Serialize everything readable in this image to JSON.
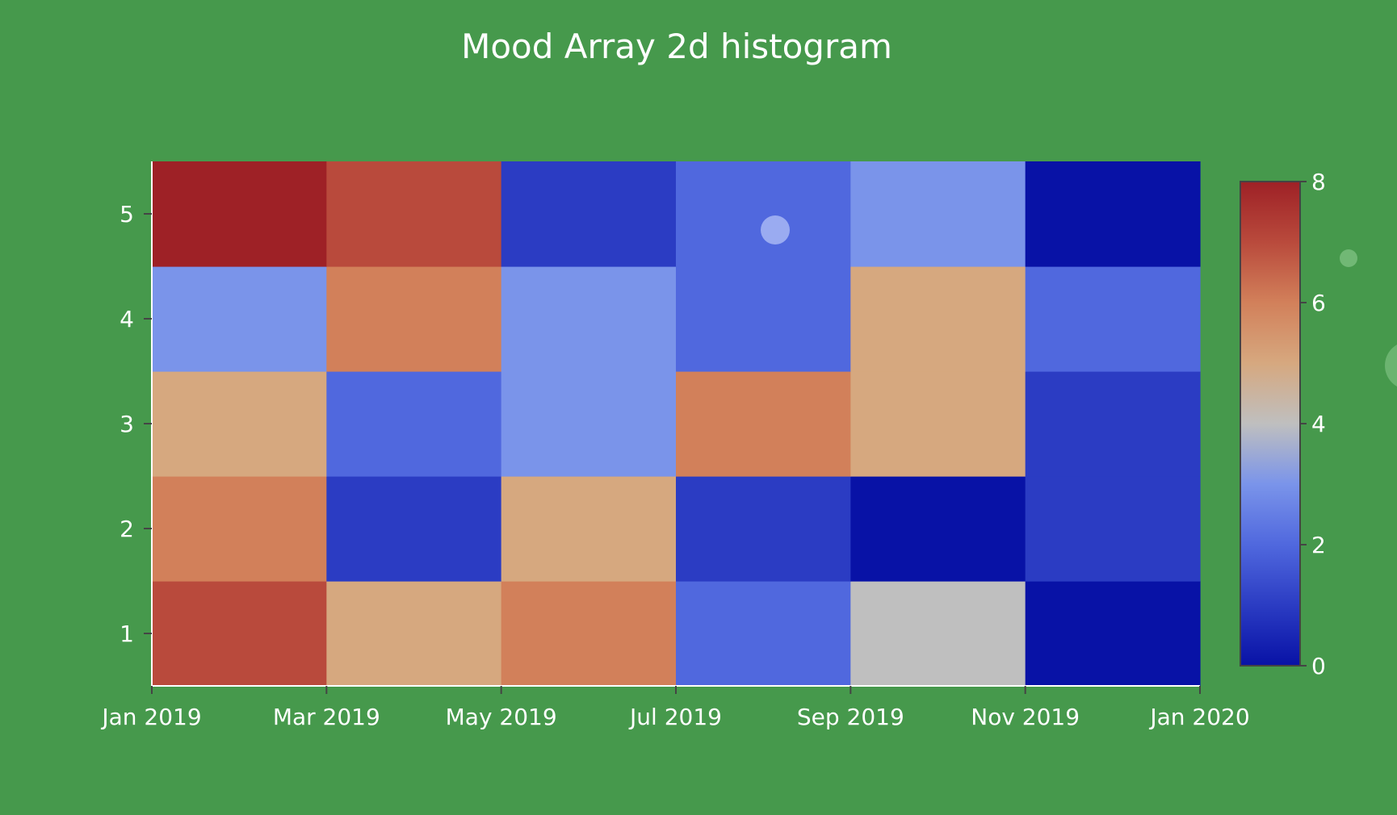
{
  "chart_data": {
    "type": "heatmap",
    "title": "Mood Array 2d histogram",
    "xlabel": "",
    "ylabel": "",
    "x_bins": [
      "2019-01-01 to 2019-03-01",
      "2019-03-01 to 2019-05-01",
      "2019-05-01 to 2019-07-01",
      "2019-07-01 to 2019-09-01",
      "2019-09-01 to 2019-11-01",
      "2019-11-01 to 2020-01-01"
    ],
    "x_tick_labels": [
      "Jan 2019",
      "Mar 2019",
      "May 2019",
      "Jul 2019",
      "Sep 2019",
      "Nov 2019",
      "Jan 2020"
    ],
    "y_categories": [
      1,
      2,
      3,
      4,
      5
    ],
    "y_tick_labels": [
      "1",
      "2",
      "3",
      "4",
      "5"
    ],
    "ylim": [
      0.5,
      5.5
    ],
    "z": [
      [
        7,
        5,
        6,
        2,
        4,
        0
      ],
      [
        6,
        1,
        5,
        1,
        0,
        1
      ],
      [
        5,
        2,
        3,
        6,
        5,
        1
      ],
      [
        3,
        6,
        3,
        2,
        5,
        2
      ],
      [
        8,
        7,
        1,
        2,
        3,
        0
      ]
    ],
    "colorbar": {
      "range": [
        0,
        8
      ],
      "tick_labels": [
        "0",
        "2",
        "4",
        "6",
        "8"
      ],
      "colorscale": [
        [
          0.0,
          "#0812a6"
        ],
        [
          0.125,
          "#2b3cc3"
        ],
        [
          0.25,
          "#5068de"
        ],
        [
          0.375,
          "#7a94ea"
        ],
        [
          0.5,
          "#bfbfbf"
        ],
        [
          0.625,
          "#d6a87f"
        ],
        [
          0.75,
          "#d2805a"
        ],
        [
          0.875,
          "#b94a3c"
        ],
        [
          1.0,
          "#9e2126"
        ]
      ]
    },
    "grid": false,
    "background_color": "#46994c"
  }
}
